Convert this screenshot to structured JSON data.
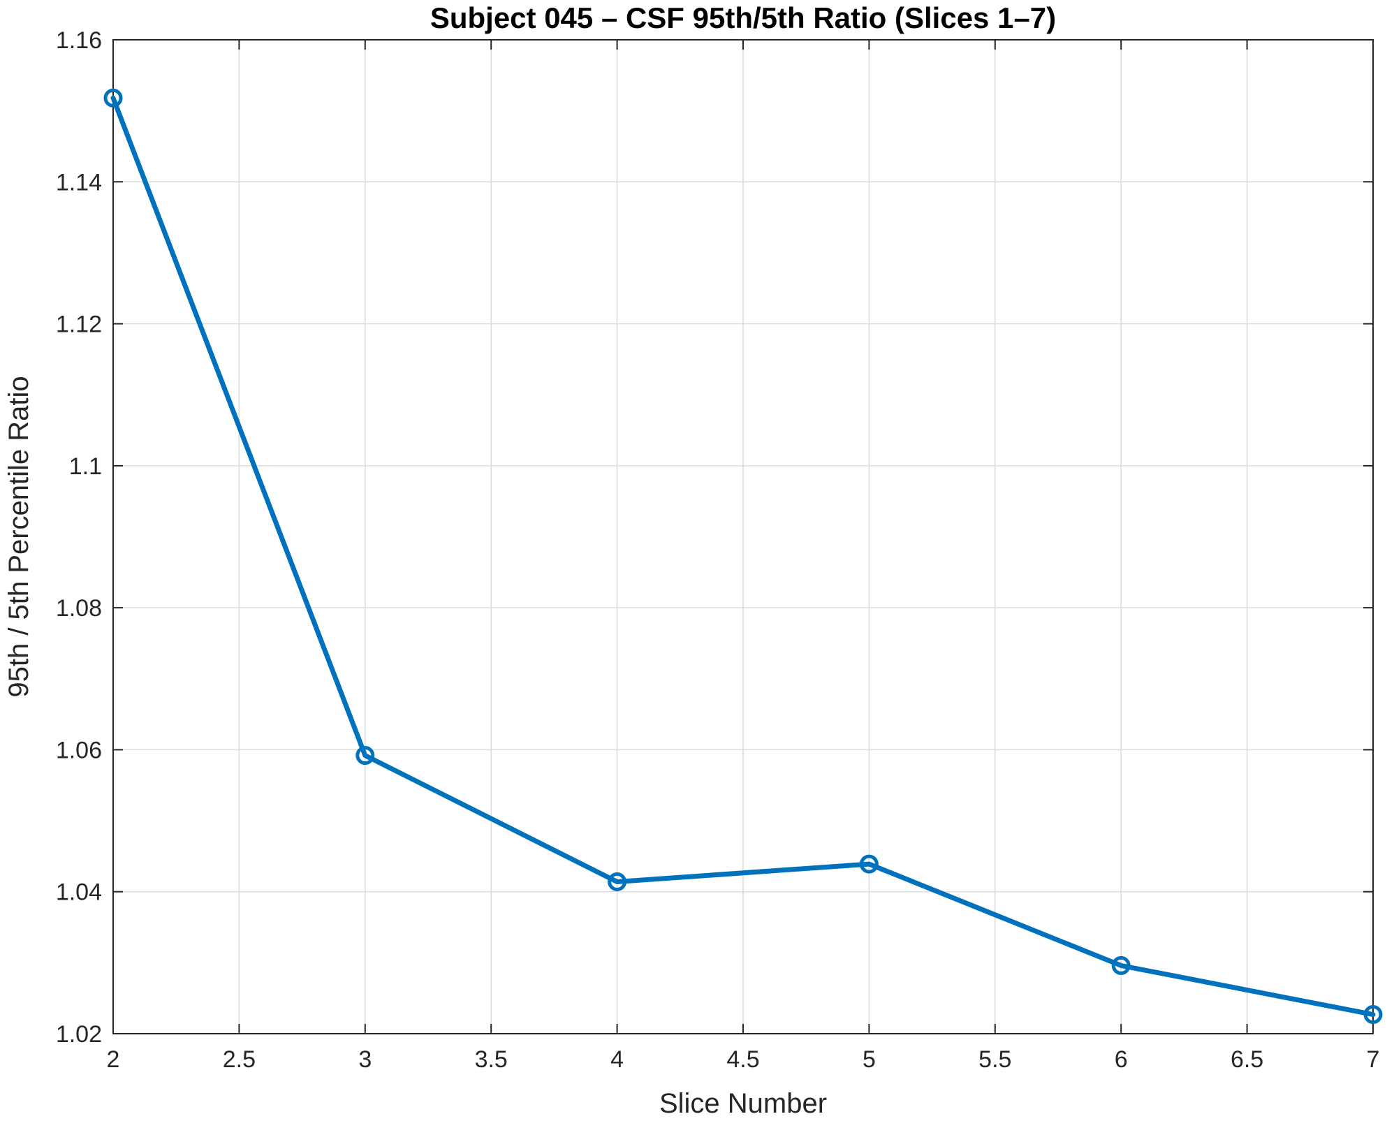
{
  "chart_data": {
    "type": "line",
    "title": "Subject 045 – CSF 95th/5th Ratio (Slices 1–7)",
    "xlabel": "Slice Number",
    "ylabel": "95th / 5th Percentile Ratio",
    "xlim": [
      2,
      7
    ],
    "ylim": [
      1.02,
      1.16
    ],
    "xticks": [
      2,
      2.5,
      3,
      3.5,
      4,
      4.5,
      5,
      5.5,
      6,
      6.5,
      7
    ],
    "xtick_labels": [
      "2",
      "2.5",
      "3",
      "3.5",
      "4",
      "4.5",
      "5",
      "5.5",
      "6",
      "6.5",
      "7"
    ],
    "yticks": [
      1.02,
      1.04,
      1.06,
      1.08,
      1.1,
      1.12,
      1.14,
      1.16
    ],
    "ytick_labels": [
      "1.02",
      "1.04",
      "1.06",
      "1.08",
      "1.1",
      "1.12",
      "1.14",
      "1.16"
    ],
    "grid": true,
    "marker": "circle",
    "color": "#0072BD",
    "series": [
      {
        "x": [
          2,
          3,
          4,
          5,
          6,
          7
        ],
        "y": [
          1.1518,
          1.0592,
          1.0414,
          1.0439,
          1.0296,
          1.0227
        ]
      }
    ]
  }
}
